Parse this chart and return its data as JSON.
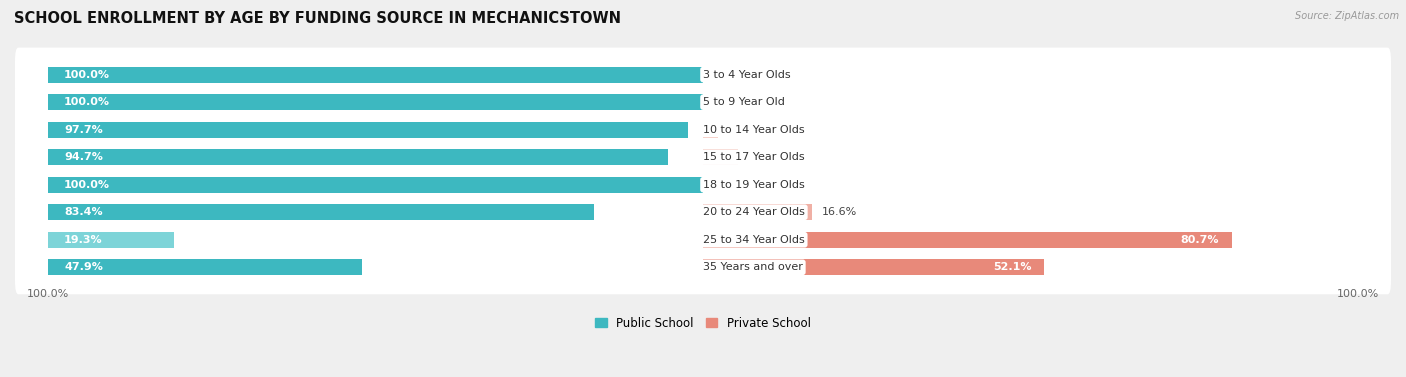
{
  "title": "SCHOOL ENROLLMENT BY AGE BY FUNDING SOURCE IN MECHANICSTOWN",
  "source": "Source: ZipAtlas.com",
  "categories": [
    "3 to 4 Year Olds",
    "5 to 9 Year Old",
    "10 to 14 Year Olds",
    "15 to 17 Year Olds",
    "18 to 19 Year Olds",
    "20 to 24 Year Olds",
    "25 to 34 Year Olds",
    "35 Years and over"
  ],
  "public_pct": [
    100.0,
    100.0,
    97.7,
    94.7,
    100.0,
    83.4,
    19.3,
    47.9
  ],
  "private_pct": [
    0.0,
    0.0,
    2.3,
    5.3,
    0.0,
    16.6,
    80.7,
    52.1
  ],
  "public_color": "#3DB8C0",
  "private_color": "#E8897A",
  "public_color_light": "#7DD4D8",
  "private_color_light": "#F0B0A5",
  "bg_color": "#EFEFEF",
  "row_bg_color": "#FAFAFA",
  "bar_height": 0.58,
  "title_fontsize": 10.5,
  "label_fontsize": 8,
  "cat_fontsize": 8,
  "axis_label_fontsize": 8,
  "xlim_left": -105,
  "xlim_right": 105
}
